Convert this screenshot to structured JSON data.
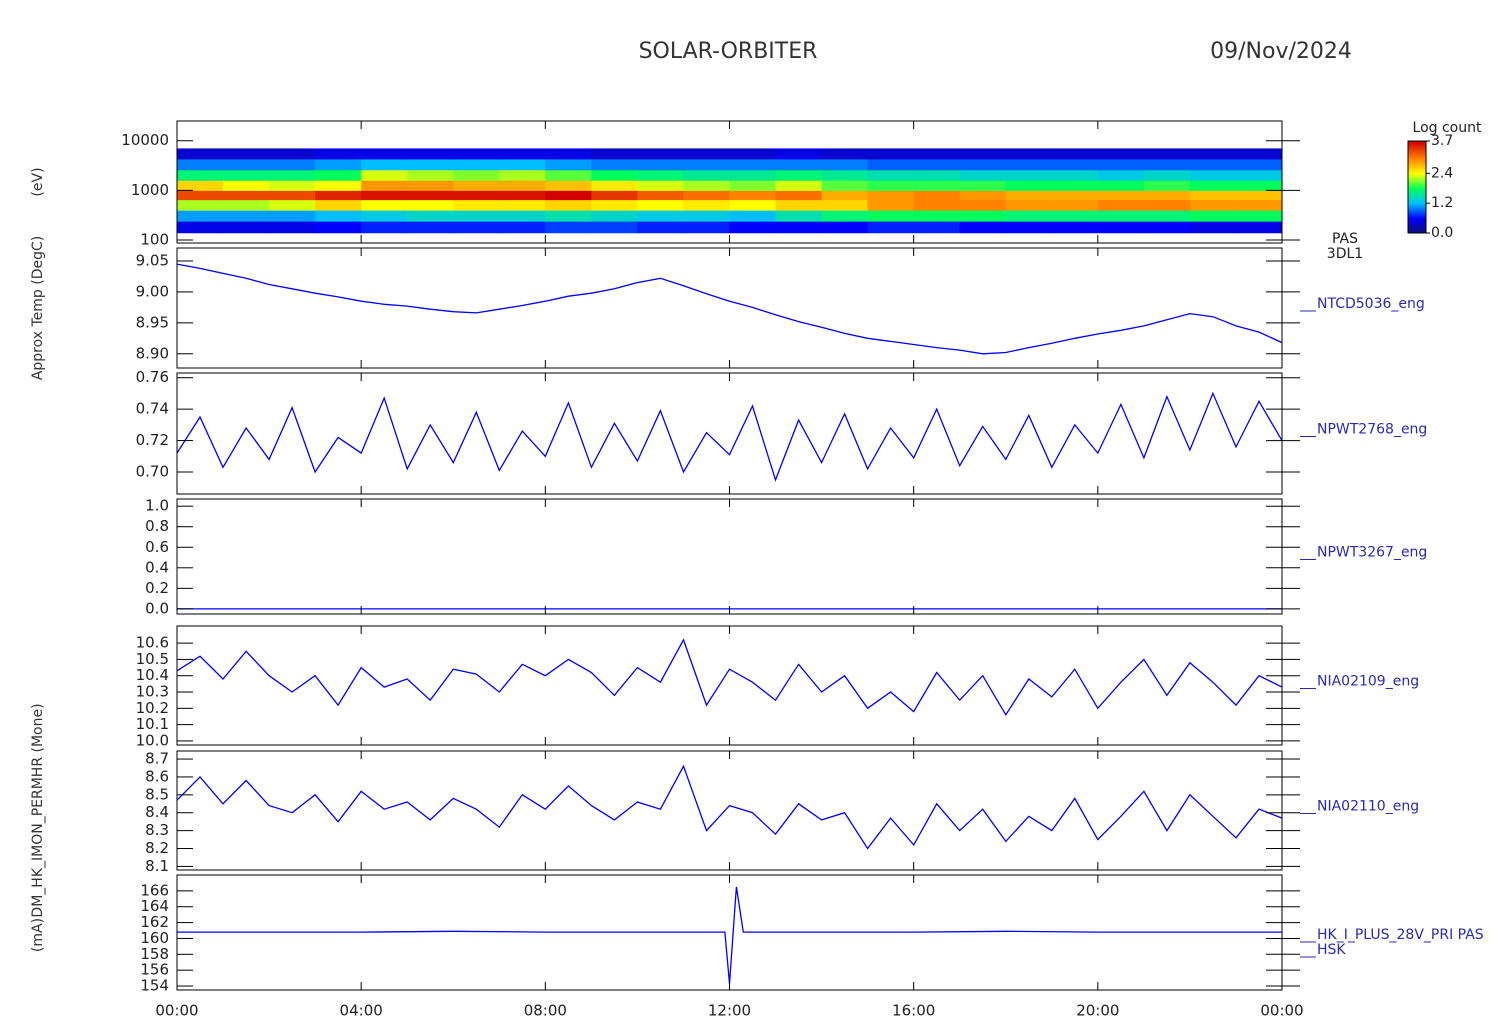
{
  "title": "SOLAR-ORBITER",
  "date": "09/Nov/2024",
  "chart_data": [
    {
      "type": "heatmap",
      "ylog": true,
      "ylabel": "(eV)",
      "labels": [
        "PAS",
        "3DL1"
      ],
      "xlim": [
        0,
        24
      ],
      "ylim": [
        87,
        25000
      ],
      "yticks": [
        100,
        1000,
        10000
      ],
      "x": [
        0,
        1,
        2,
        3,
        4,
        5,
        6,
        7,
        8,
        9,
        10,
        11,
        12,
        13,
        14,
        15,
        16,
        17,
        18,
        19,
        20,
        21,
        22,
        23,
        24
      ],
      "y": [
        140,
        240,
        400,
        650,
        1000,
        1600,
        2600,
        4300,
        7000
      ],
      "z": [
        [
          0.5,
          0.5,
          0.5,
          0.6,
          0.7,
          0.7,
          0.7,
          0.7,
          0.8,
          0.8,
          0.7,
          0.7,
          0.6,
          0.6,
          0.6,
          0.7,
          0.7,
          0.6,
          0.6,
          0.6,
          0.6,
          0.6,
          0.5,
          0.5
        ],
        [
          1.1,
          1.1,
          1.1,
          1.2,
          1.3,
          1.4,
          1.4,
          1.4,
          1.5,
          1.4,
          1.3,
          1.3,
          1.2,
          1.5,
          1.7,
          1.8,
          1.8,
          1.8,
          1.7,
          1.7,
          1.7,
          1.7,
          1.8,
          1.8
        ],
        [
          2.2,
          2.2,
          2.3,
          2.6,
          2.4,
          2.4,
          2.5,
          2.5,
          2.6,
          2.5,
          2.4,
          2.5,
          2.4,
          2.6,
          2.6,
          2.9,
          3.0,
          3.0,
          2.9,
          2.9,
          3.0,
          3.0,
          2.9,
          2.9
        ],
        [
          3.3,
          3.3,
          3.3,
          3.5,
          3.6,
          3.6,
          3.6,
          3.6,
          3.7,
          3.4,
          3.2,
          3.1,
          3.0,
          3.1,
          2.8,
          2.9,
          3.0,
          2.9,
          2.8,
          2.8,
          2.8,
          2.8,
          2.7,
          2.7
        ],
        [
          2.6,
          2.4,
          2.3,
          2.4,
          2.9,
          2.9,
          2.8,
          2.8,
          2.7,
          2.5,
          2.3,
          2.2,
          2.1,
          2.3,
          2.0,
          1.9,
          1.9,
          1.9,
          1.8,
          1.8,
          1.8,
          1.9,
          1.8,
          1.8
        ],
        [
          1.7,
          1.7,
          1.7,
          1.8,
          2.3,
          2.2,
          2.1,
          2.2,
          2.0,
          1.8,
          1.7,
          1.6,
          1.6,
          1.7,
          1.6,
          1.5,
          1.5,
          1.4,
          1.4,
          1.4,
          1.3,
          1.4,
          1.3,
          1.3
        ],
        [
          1.0,
          1.0,
          1.0,
          1.1,
          1.2,
          1.2,
          1.2,
          1.2,
          1.1,
          1.0,
          1.0,
          1.0,
          1.0,
          1.0,
          1.0,
          0.9,
          0.9,
          0.9,
          0.9,
          0.9,
          0.9,
          0.9,
          0.9,
          0.9
        ],
        [
          0.4,
          0.4,
          0.4,
          0.5,
          0.5,
          0.5,
          0.5,
          0.5,
          0.5,
          0.4,
          0.4,
          0.4,
          0.4,
          0.5,
          0.4,
          0.4,
          0.4,
          0.4,
          0.4,
          0.4,
          0.4,
          0.4,
          0.4,
          0.4
        ]
      ],
      "zlabel": "Log count",
      "zlim": [
        0,
        3.7
      ],
      "zticks": [
        {
          "value": 0,
          "label": "0.0"
        },
        1.2,
        2.4,
        3.7
      ]
    },
    {
      "type": "line",
      "ylabel": "Approx Temp (DegC)",
      "labels": [
        "NTCD5036_eng"
      ],
      "color": "#0000ff",
      "xlim": [
        0,
        24
      ],
      "ylim": [
        8.877,
        9.071
      ],
      "yticks": [
        9.05,
        {
          "value": 9.0,
          "label": "9.00"
        },
        8.95,
        {
          "value": 8.9,
          "label": "8.90"
        }
      ],
      "x": [
        0,
        0.5,
        1,
        1.5,
        2,
        2.5,
        3,
        3.5,
        4,
        4.5,
        5,
        5.5,
        6,
        6.5,
        7,
        7.5,
        8,
        8.5,
        9,
        9.5,
        10,
        10.5,
        11,
        11.5,
        12,
        12.5,
        13,
        13.5,
        14,
        14.5,
        15,
        15.5,
        16,
        16.5,
        17,
        17.5,
        18,
        18.5,
        19,
        19.5,
        20,
        20.5,
        21,
        21.5,
        22,
        22.5,
        23,
        23.5,
        24
      ],
      "values": [
        9.045,
        9.038,
        9.03,
        9.022,
        9.012,
        9.005,
        8.998,
        8.992,
        8.985,
        8.98,
        8.977,
        8.972,
        8.968,
        8.966,
        8.972,
        8.978,
        8.985,
        8.993,
        8.998,
        9.005,
        9.015,
        9.022,
        9.01,
        8.997,
        8.985,
        8.975,
        8.963,
        8.952,
        8.943,
        8.933,
        8.925,
        8.92,
        8.915,
        8.91,
        8.906,
        8.9,
        8.902,
        8.91,
        8.917,
        8.925,
        8.932,
        8.938,
        8.945,
        8.955,
        8.965,
        8.96,
        8.945,
        8.935,
        8.918
      ]
    },
    {
      "type": "line",
      "labels": [
        "NPWT2768_eng"
      ],
      "color": "#0000ff",
      "xlim": [
        0,
        24
      ],
      "ylim": [
        0.686,
        0.763
      ],
      "yticks": [
        0.76,
        0.74,
        0.72,
        {
          "value": 0.7,
          "label": "0.70"
        }
      ],
      "x": [
        0,
        0.5,
        1,
        1.5,
        2,
        2.5,
        3,
        3.5,
        4,
        4.5,
        5,
        5.5,
        6,
        6.5,
        7,
        7.5,
        8,
        8.5,
        9,
        9.5,
        10,
        10.5,
        11,
        11.5,
        12,
        12.5,
        13,
        13.5,
        14,
        14.5,
        15,
        15.5,
        16,
        16.5,
        17,
        17.5,
        18,
        18.5,
        19,
        19.5,
        20,
        20.5,
        21,
        21.5,
        22,
        22.5,
        23,
        23.5,
        24
      ],
      "values": [
        0.712,
        0.735,
        0.703,
        0.728,
        0.708,
        0.741,
        0.7,
        0.722,
        0.712,
        0.747,
        0.702,
        0.73,
        0.706,
        0.738,
        0.701,
        0.726,
        0.71,
        0.744,
        0.703,
        0.731,
        0.707,
        0.739,
        0.7,
        0.725,
        0.711,
        0.742,
        0.695,
        0.733,
        0.706,
        0.737,
        0.702,
        0.728,
        0.709,
        0.74,
        0.704,
        0.729,
        0.708,
        0.736,
        0.703,
        0.73,
        0.712,
        0.743,
        0.709,
        0.748,
        0.714,
        0.75,
        0.716,
        0.745,
        0.72
      ]
    },
    {
      "type": "line",
      "labels": [
        "NPWT3267_eng"
      ],
      "color": "#0000ff",
      "xlim": [
        0,
        24
      ],
      "ylim": [
        -0.05,
        1.07
      ],
      "yticks": [
        {
          "value": 1,
          "label": "1.0"
        },
        0.8,
        0.6,
        0.4,
        0.2,
        {
          "value": 0,
          "label": "0.0"
        }
      ],
      "x": [
        0,
        0.5,
        1,
        1.5,
        2,
        2.5,
        3,
        3.5,
        4,
        4.5,
        5,
        5.5,
        6,
        6.5,
        7,
        7.5,
        8,
        8.5,
        9,
        9.5,
        10,
        10.5,
        11,
        11.5,
        12,
        12.5,
        13,
        13.5,
        14,
        14.5,
        15,
        15.5,
        16,
        16.5,
        17,
        17.5,
        18,
        18.5,
        19,
        19.5,
        20,
        20.5,
        21,
        21.5,
        22,
        22.5,
        23,
        23.5,
        24
      ],
      "values": [
        0,
        0,
        0,
        0,
        0,
        0,
        0,
        0,
        0,
        0,
        0,
        0,
        0,
        0,
        0,
        0,
        0,
        0,
        0,
        0,
        0,
        0,
        0,
        0,
        0,
        0,
        0,
        0,
        0,
        0,
        0,
        0,
        0,
        0,
        0,
        0,
        0,
        0,
        0,
        0,
        0,
        0,
        0,
        0,
        0,
        0,
        0,
        0,
        0
      ]
    },
    {
      "type": "line",
      "labels": [
        "NIA02109_eng"
      ],
      "color": "#0000ff",
      "xlim": [
        0,
        24
      ],
      "ylim": [
        9.975,
        10.705
      ],
      "yticks": [
        10.6,
        10.5,
        10.4,
        10.3,
        10.2,
        10.1,
        {
          "value": 10,
          "label": "10.0"
        }
      ],
      "x": [
        0,
        0.5,
        1,
        1.5,
        2,
        2.5,
        3,
        3.5,
        4,
        4.5,
        5,
        5.5,
        6,
        6.5,
        7,
        7.5,
        8,
        8.5,
        9,
        9.5,
        10,
        10.5,
        11,
        11.5,
        12,
        12.5,
        13,
        13.5,
        14,
        14.5,
        15,
        15.5,
        16,
        16.5,
        17,
        17.5,
        18,
        18.5,
        19,
        19.5,
        20,
        20.5,
        21,
        21.5,
        22,
        22.5,
        23,
        23.5,
        24
      ],
      "values": [
        10.43,
        10.52,
        10.38,
        10.55,
        10.4,
        10.3,
        10.4,
        10.22,
        10.45,
        10.33,
        10.38,
        10.25,
        10.44,
        10.41,
        10.3,
        10.47,
        10.4,
        10.5,
        10.42,
        10.28,
        10.45,
        10.36,
        10.62,
        10.22,
        10.44,
        10.36,
        10.25,
        10.47,
        10.3,
        10.4,
        10.2,
        10.3,
        10.18,
        10.42,
        10.25,
        10.4,
        10.16,
        10.38,
        10.27,
        10.44,
        10.2,
        10.36,
        10.5,
        10.28,
        10.48,
        10.36,
        10.22,
        10.4,
        10.33
      ]
    },
    {
      "type": "line",
      "ylabel": "DM_HK_IMON_PERMHR (Mone)",
      "labels": [
        "NIA02110_eng"
      ],
      "color": "#0000ff",
      "xlim": [
        0,
        24
      ],
      "ylim": [
        8.08,
        8.745
      ],
      "yticks": [
        8.7,
        8.6,
        8.5,
        8.4,
        8.3,
        8.2,
        8.1
      ],
      "x": [
        0,
        0.5,
        1,
        1.5,
        2,
        2.5,
        3,
        3.5,
        4,
        4.5,
        5,
        5.5,
        6,
        6.5,
        7,
        7.5,
        8,
        8.5,
        9,
        9.5,
        10,
        10.5,
        11,
        11.5,
        12,
        12.5,
        13,
        13.5,
        14,
        14.5,
        15,
        15.5,
        16,
        16.5,
        17,
        17.5,
        18,
        18.5,
        19,
        19.5,
        20,
        20.5,
        21,
        21.5,
        22,
        22.5,
        23,
        23.5,
        24
      ],
      "values": [
        8.47,
        8.6,
        8.45,
        8.58,
        8.44,
        8.4,
        8.5,
        8.35,
        8.52,
        8.42,
        8.46,
        8.36,
        8.48,
        8.42,
        8.32,
        8.5,
        8.42,
        8.55,
        8.44,
        8.36,
        8.46,
        8.42,
        8.66,
        8.3,
        8.44,
        8.4,
        8.28,
        8.45,
        8.36,
        8.4,
        8.2,
        8.37,
        8.22,
        8.45,
        8.3,
        8.42,
        8.24,
        8.38,
        8.3,
        8.48,
        8.25,
        8.38,
        8.52,
        8.3,
        8.5,
        8.38,
        8.26,
        8.42,
        8.37
      ]
    },
    {
      "type": "line",
      "ylabel": "(mA)",
      "labels": [
        "HK_I_PLUS_28V_PRI PAS",
        "HSK"
      ],
      "color": "#0000ff",
      "xlim": [
        0,
        24
      ],
      "ylim": [
        153.5,
        168
      ],
      "yticks": [
        166,
        164,
        162,
        160,
        158,
        156,
        154
      ],
      "xticks": [
        {
          "value": 0,
          "label": "00:00"
        },
        {
          "value": 4,
          "label": "04:00"
        },
        {
          "value": 8,
          "label": "08:00"
        },
        {
          "value": 12,
          "label": "12:00"
        },
        {
          "value": 16,
          "label": "16:00"
        },
        {
          "value": 20,
          "label": "20:00"
        },
        {
          "value": 24,
          "label": "00:00"
        }
      ],
      "x": [
        0,
        2,
        4,
        6,
        8,
        10,
        11.9,
        12,
        12.15,
        12.3,
        14,
        16,
        18,
        20,
        22,
        24
      ],
      "values": [
        160.8,
        160.8,
        160.8,
        160.9,
        160.8,
        160.8,
        160.8,
        154.3,
        166.5,
        160.8,
        160.8,
        160.8,
        160.9,
        160.8,
        160.8,
        160.8
      ]
    }
  ]
}
